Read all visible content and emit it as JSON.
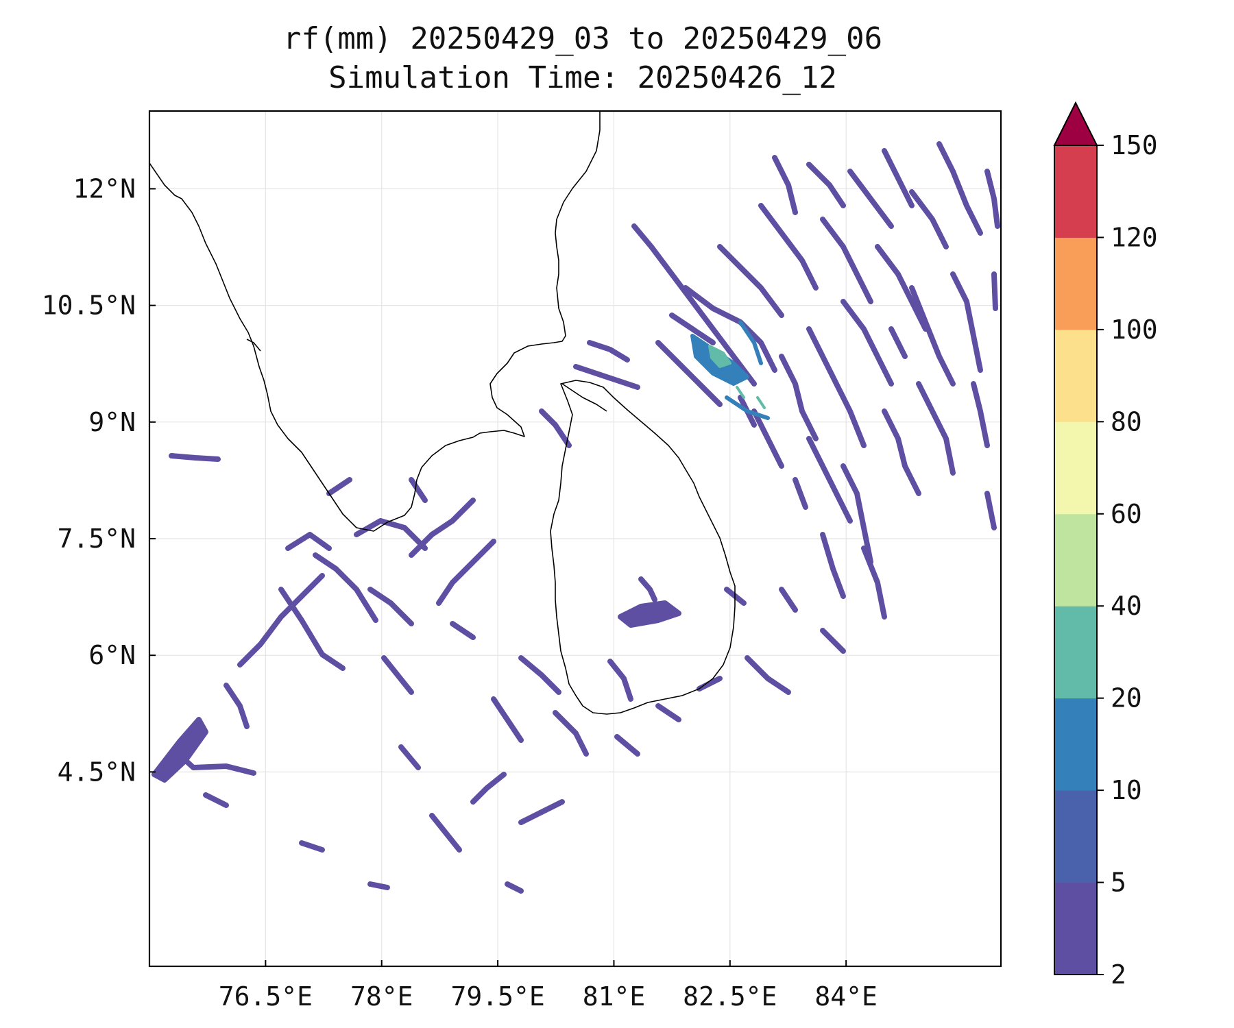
{
  "title": {
    "line1": "rf(mm) 20250429_03 to 20250429_06",
    "line2": "Simulation Time: 20250426_12"
  },
  "map": {
    "lon_range": [
      75.0,
      86.0
    ],
    "lat_range": [
      2.0,
      13.0
    ],
    "x_ticks": [
      {
        "value": 76.5,
        "label": "76.5°E"
      },
      {
        "value": 78.0,
        "label": "78°E"
      },
      {
        "value": 79.5,
        "label": "79.5°E"
      },
      {
        "value": 81.0,
        "label": "81°E"
      },
      {
        "value": 82.5,
        "label": "82.5°E"
      },
      {
        "value": 84.0,
        "label": "84°E"
      }
    ],
    "y_ticks": [
      {
        "value": 12.0,
        "label": "12°N"
      },
      {
        "value": 10.5,
        "label": "10.5°N"
      },
      {
        "value": 9.0,
        "label": "9°N"
      },
      {
        "value": 7.5,
        "label": "7.5°N"
      },
      {
        "value": 6.0,
        "label": "6°N"
      },
      {
        "value": 4.5,
        "label": "4.5°N"
      }
    ],
    "gridlines": true,
    "coastline_color": "#000000"
  },
  "colorbar": {
    "levels": [
      {
        "label": "2",
        "color": "#5e4fa2"
      },
      {
        "label": "5",
        "color": "#4a62ab"
      },
      {
        "label": "10",
        "color": "#3380bb"
      },
      {
        "label": "20",
        "color": "#62bba9"
      },
      {
        "label": "40",
        "color": "#bfe4a0"
      },
      {
        "label": "60",
        "color": "#f2f7ad"
      },
      {
        "label": "80",
        "color": "#fce08b"
      },
      {
        "label": "100",
        "color": "#f99e59"
      },
      {
        "label": "120",
        "color": "#d53e4f"
      },
      {
        "label": "150",
        "color": ""
      }
    ],
    "extend_color": "#9e0142",
    "extend": "max"
  }
}
